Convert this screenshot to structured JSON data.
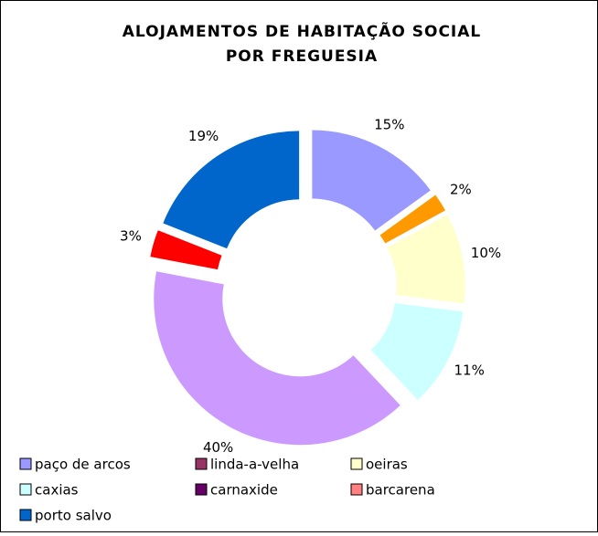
{
  "chart_data": {
    "type": "donut",
    "title": [
      "ALOJAMENTOS DE HABITAÇÃO SOCIAL",
      "POR FREGUESIA"
    ],
    "categories": [
      "paço de arcos",
      "linda-a-velha",
      "oeiras",
      "caxias",
      "carnaxide",
      "barcarena",
      "porto salvo"
    ],
    "values": [
      15,
      2,
      10,
      11,
      40,
      3,
      19
    ],
    "value_labels": [
      "15%",
      "2%",
      "10%",
      "11%",
      "40%",
      "3%",
      "19%"
    ],
    "colors": [
      "#9999ff",
      "#ff9900",
      "#ffffcc",
      "#ccffff",
      "#cc99ff",
      "#ff0000",
      "#0066cc"
    ],
    "legend_colors": [
      "#9999ff",
      "#993366",
      "#ffffcc",
      "#ccffff",
      "#660066",
      "#ff8080",
      "#0066cc"
    ]
  }
}
